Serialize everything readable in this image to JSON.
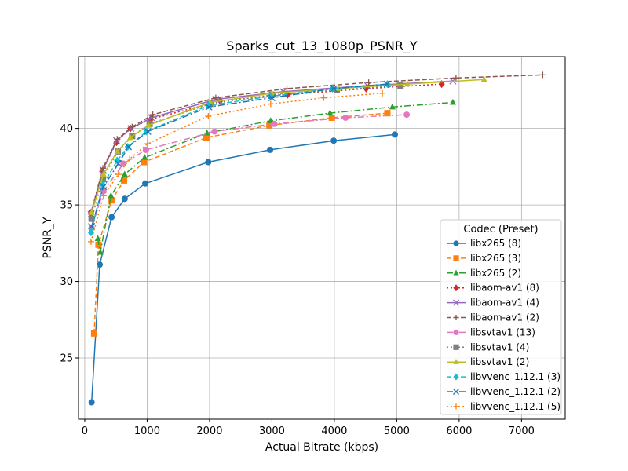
{
  "chart_data": {
    "type": "line",
    "title": "Sparks_cut_13_1080p_PSNR_Y",
    "xlabel": "Actual Bitrate (kbps)",
    "ylabel": "PSNR_Y",
    "xlim": [
      -100,
      7700
    ],
    "ylim": [
      21,
      44.7
    ],
    "xticks": [
      0,
      1000,
      2000,
      3000,
      4000,
      5000,
      6000,
      7000
    ],
    "yticks": [
      25,
      30,
      35,
      40
    ],
    "grid": true,
    "legend": {
      "title": "Codec (Preset)",
      "position": "lower-right"
    },
    "series": [
      {
        "name": "libx265 (8)",
        "color": "#1f77b4",
        "dash": "solid",
        "marker": "circle",
        "x": [
          110,
          240,
          430,
          640,
          970,
          1980,
          2970,
          3990,
          4970
        ],
        "y": [
          22.1,
          31.1,
          34.2,
          35.4,
          36.4,
          37.8,
          38.6,
          39.2,
          39.6
        ]
      },
      {
        "name": "libx265 (3)",
        "color": "#ff7f0e",
        "dash": "dashed",
        "marker": "square",
        "x": [
          150,
          220,
          430,
          630,
          950,
          1950,
          2960,
          3960,
          4850
        ],
        "y": [
          26.6,
          32.4,
          35.3,
          36.6,
          37.8,
          39.4,
          40.2,
          40.7,
          41.0
        ]
      },
      {
        "name": "libx265 (2)",
        "color": "#2ca02c",
        "dash": "dashdot",
        "marker": "triangle",
        "x": [
          210,
          250,
          420,
          640,
          960,
          1960,
          2980,
          3930,
          4930,
          5900
        ],
        "y": [
          32.8,
          31.9,
          35.6,
          37.0,
          38.1,
          39.7,
          40.5,
          41.0,
          41.4,
          41.7
        ]
      },
      {
        "name": "libaom-av1 (8)",
        "color": "#d62728",
        "dash": "dotted",
        "marker": "diamond",
        "x": [
          100,
          280,
          510,
          730,
          1060,
          2170,
          3250,
          4510,
          5720
        ],
        "y": [
          34.5,
          37.2,
          39.1,
          40.0,
          40.6,
          41.8,
          42.2,
          42.6,
          42.9
        ]
      },
      {
        "name": "libaom-av1 (4)",
        "color": "#9467bd",
        "dash": "solid",
        "marker": "x",
        "x": [
          100,
          290,
          510,
          740,
          1070,
          2100,
          3180,
          4530,
          5900
        ],
        "y": [
          34.4,
          37.3,
          39.2,
          40.0,
          40.7,
          41.9,
          42.4,
          42.8,
          43.1
        ]
      },
      {
        "name": "libaom-av1 (2)",
        "color": "#8c564b",
        "dash": "dashed",
        "marker": "plus",
        "x": [
          100,
          290,
          520,
          760,
          1090,
          2100,
          3240,
          4550,
          5950,
          7340
        ],
        "y": [
          34.4,
          37.4,
          39.3,
          40.1,
          40.9,
          42.0,
          42.6,
          43.0,
          43.3,
          43.5
        ]
      },
      {
        "name": "libsvtav1 (13)",
        "color": "#e377c2",
        "dash": "dashdot",
        "marker": "circle",
        "x": [
          110,
          300,
          620,
          980,
          2080,
          3040,
          4180,
          5160
        ],
        "y": [
          33.5,
          35.9,
          37.7,
          38.6,
          39.8,
          40.3,
          40.7,
          40.9
        ]
      },
      {
        "name": "libsvtav1 (4)",
        "color": "#7f7f7f",
        "dash": "dotted",
        "marker": "square",
        "x": [
          110,
          290,
          530,
          760,
          1040,
          2010,
          3000,
          4040,
          5060
        ],
        "y": [
          34.1,
          36.7,
          38.5,
          39.5,
          40.3,
          41.6,
          42.2,
          42.5,
          42.8
        ]
      },
      {
        "name": "libsvtav1 (2)",
        "color": "#bcbd22",
        "dash": "solid",
        "marker": "triangle",
        "x": [
          110,
          300,
          520,
          730,
          1020,
          2010,
          3000,
          4060,
          5170,
          6400
        ],
        "y": [
          34.5,
          37.0,
          38.5,
          39.4,
          40.2,
          41.7,
          42.3,
          42.6,
          42.9,
          43.2
        ]
      },
      {
        "name": "libvvenc_1.12.1 (3)",
        "color": "#17becf",
        "dash": "dashed",
        "marker": "diamond",
        "x": [
          100,
          290,
          520,
          690,
          990,
          1980,
          2980,
          3970,
          4850
        ],
        "y": [
          33.2,
          36.3,
          37.9,
          38.8,
          39.8,
          41.5,
          42.1,
          42.6,
          42.9
        ]
      },
      {
        "name": "libvvenc_1.12.1 (2)",
        "color": "#1f77b4",
        "dash": "dashdot",
        "marker": "x",
        "x": [
          110,
          300,
          540,
          700,
          1010,
          1990,
          3000,
          3990,
          4850
        ],
        "y": [
          33.6,
          36.2,
          37.7,
          38.8,
          39.8,
          41.4,
          42.0,
          42.6,
          42.9
        ]
      },
      {
        "name": "libvvenc_1.12.1 (5)",
        "color": "#ff7f0e",
        "dash": "dotted",
        "marker": "plus",
        "x": [
          100,
          300,
          540,
          720,
          1010,
          1980,
          2980,
          3830,
          4770
        ],
        "y": [
          32.6,
          35.6,
          37.0,
          38.0,
          39.0,
          40.8,
          41.6,
          42.0,
          42.3
        ]
      }
    ]
  }
}
